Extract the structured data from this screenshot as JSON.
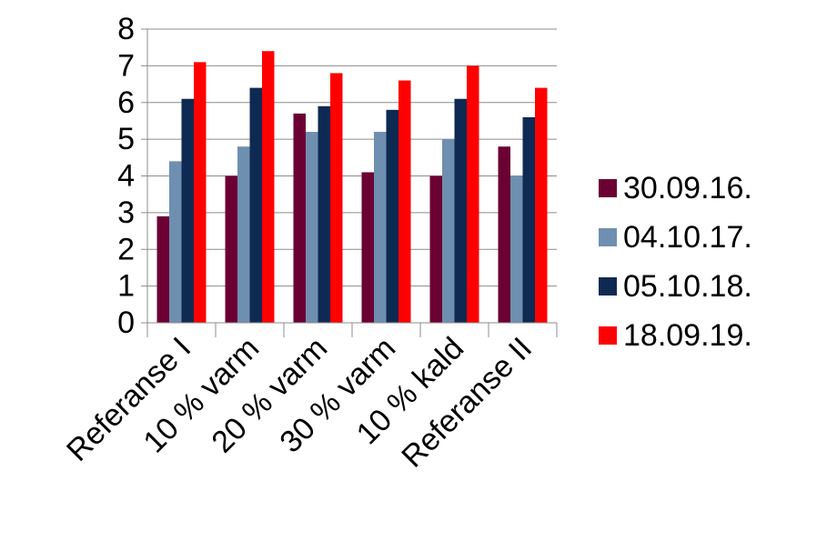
{
  "chart_data": {
    "type": "bar",
    "title": "",
    "xlabel": "",
    "ylabel": "",
    "categories": [
      "Referanse I",
      "10 % varm",
      "20 % varm",
      "30 % varm",
      "10 % kald",
      "Referanse II"
    ],
    "series": [
      {
        "name": "30.09.16.",
        "color": "#6b0033",
        "values": [
          2.9,
          4.0,
          5.7,
          4.1,
          4.0,
          4.8
        ]
      },
      {
        "name": "04.10.17.",
        "color": "#6f8fb0",
        "values": [
          4.4,
          4.8,
          5.2,
          5.2,
          5.0,
          4.0
        ]
      },
      {
        "name": "05.10.18.",
        "color": "#0f2a52",
        "values": [
          6.1,
          6.4,
          5.9,
          5.8,
          6.1,
          5.6
        ]
      },
      {
        "name": "18.09.19.",
        "color": "#ff0000",
        "values": [
          7.1,
          7.4,
          6.8,
          6.6,
          7.0,
          6.4
        ]
      }
    ],
    "ylim": [
      0,
      8
    ],
    "yticks": [
      0,
      1,
      2,
      3,
      4,
      5,
      6,
      7,
      8
    ],
    "grid": "horizontal",
    "legend_position": "right"
  }
}
